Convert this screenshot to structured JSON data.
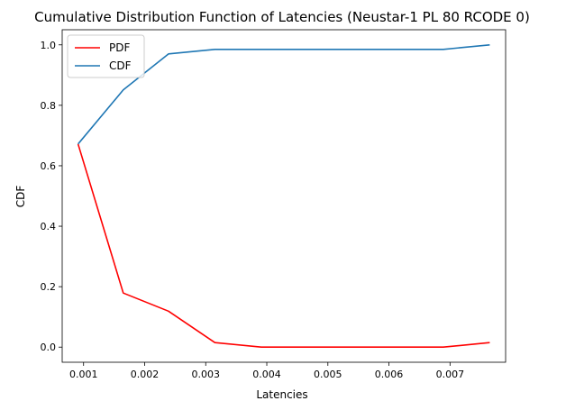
{
  "chart_data": {
    "type": "line",
    "title": "Cumulative Distribution Function of Latencies (Neustar-1 PL 80 RCODE 0)",
    "xlabel": "Latencies",
    "ylabel": "CDF",
    "xlim": [
      0.00065,
      0.00791
    ],
    "ylim": [
      -0.05,
      1.05
    ],
    "xticks": [
      0.001,
      0.002,
      0.003,
      0.004,
      0.005,
      0.006,
      0.007
    ],
    "xtick_labels": [
      "0.001",
      "0.002",
      "0.003",
      "0.004",
      "0.005",
      "0.006",
      "0.007"
    ],
    "yticks": [
      0.0,
      0.2,
      0.4,
      0.6,
      0.8,
      1.0
    ],
    "ytick_labels": [
      "0.0",
      "0.2",
      "0.4",
      "0.6",
      "0.8",
      "1.0"
    ],
    "grid": false,
    "legend_position": "top-left",
    "x": [
      0.00091,
      0.00165,
      0.00239,
      0.00315,
      0.00391,
      0.00689,
      0.00765
    ],
    "series": [
      {
        "name": "PDF",
        "color": "#ff0000",
        "values": [
          0.672,
          0.179,
          0.119,
          0.015,
          0.0,
          0.0,
          0.015
        ]
      },
      {
        "name": "CDF",
        "color": "#1f77b4",
        "values": [
          0.672,
          0.851,
          0.97,
          0.985,
          0.985,
          0.985,
          1.0
        ]
      }
    ]
  }
}
